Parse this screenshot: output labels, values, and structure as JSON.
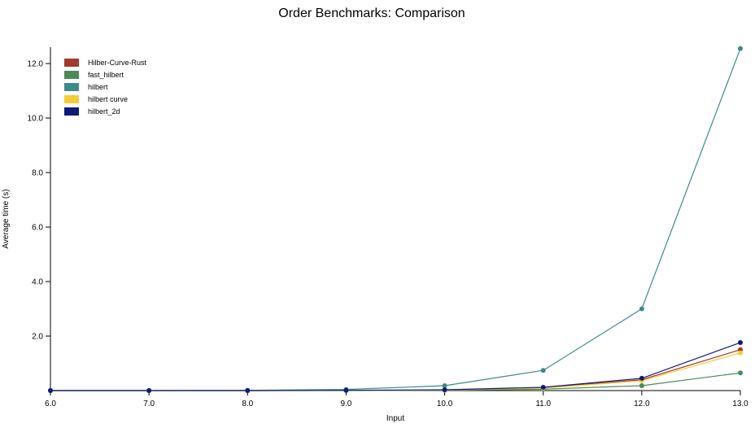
{
  "chart_data": {
    "type": "line",
    "title": "Order Benchmarks: Comparison",
    "xlabel": "Input",
    "ylabel": "Average time (s)",
    "x": [
      6.0,
      7.0,
      8.0,
      9.0,
      10.0,
      11.0,
      12.0,
      13.0
    ],
    "x_ticks": [
      "6.0",
      "7.0",
      "8.0",
      "9.0",
      "10.0",
      "11.0",
      "12.0",
      "13.0"
    ],
    "y_ticks": [
      "2.0",
      "4.0",
      "6.0",
      "8.0",
      "10.0",
      "12.0"
    ],
    "xlim": [
      6.0,
      13.0
    ],
    "ylim": [
      0,
      12.6
    ],
    "grid": false,
    "legend_position": "top-left",
    "series": [
      {
        "name": "Hilber-Curve-Rust",
        "color": "#a33a2a",
        "values": [
          0.0,
          0.0,
          0.0,
          0.01,
          0.02,
          0.1,
          0.4,
          1.5
        ]
      },
      {
        "name": "fast_hilbert",
        "color": "#4a8a56",
        "values": [
          0.0,
          0.0,
          0.0,
          0.0,
          0.01,
          0.05,
          0.18,
          0.65
        ]
      },
      {
        "name": "hilbert",
        "color": "#3d8a8a",
        "values": [
          0.0,
          0.0,
          0.01,
          0.04,
          0.18,
          0.74,
          3.0,
          12.55
        ]
      },
      {
        "name": "hilbert curve",
        "color": "#f2cd38",
        "values": [
          0.0,
          0.0,
          0.0,
          0.01,
          0.02,
          0.09,
          0.36,
          1.38
        ]
      },
      {
        "name": "hilbert_2d",
        "color": "#0e1a7a",
        "values": [
          0.0,
          0.0,
          0.0,
          0.01,
          0.03,
          0.12,
          0.45,
          1.76
        ]
      }
    ]
  }
}
